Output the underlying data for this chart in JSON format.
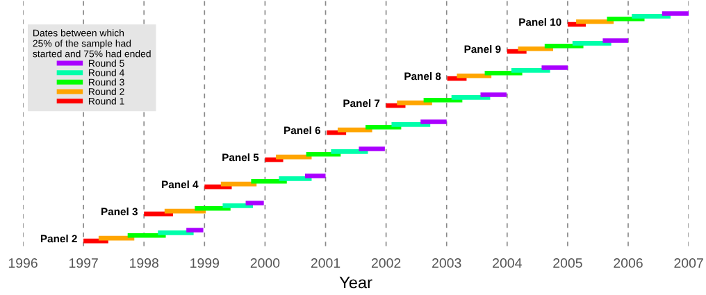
{
  "chart_data": {
    "type": "bar",
    "orientation": "horizontal",
    "xlabel": "Year",
    "legend_title": "Dates between which\n25% of the sample had\nstarted and 75% had ended",
    "categories": [
      "Panel 10",
      "Panel 9",
      "Panel 8",
      "Panel 7",
      "Panel 6",
      "Panel 5",
      "Panel 4",
      "Panel 3",
      "Panel 2"
    ],
    "series": [
      {
        "name": "Round 1",
        "color": "#ff0000",
        "base": [
          2005.0,
          2004.0,
          2003.01,
          2002.0,
          2001.02,
          2000.0,
          1999.0,
          1998.0,
          1997.0
        ],
        "values": [
          0.3,
          0.32,
          0.32,
          0.32,
          0.32,
          0.3,
          0.45,
          0.48,
          0.41
        ]
      },
      {
        "name": "Round 2",
        "color": "#ffa500",
        "base": [
          2005.14,
          2004.18,
          2003.17,
          2002.18,
          2001.2,
          2000.18,
          1999.27,
          1998.34,
          1997.25
        ],
        "values": [
          0.62,
          0.58,
          0.57,
          0.58,
          0.57,
          0.59,
          0.59,
          0.68,
          0.59
        ]
      },
      {
        "name": "Round 3",
        "color": "#00ff00",
        "base": [
          2005.65,
          2004.62,
          2003.63,
          2002.62,
          2001.66,
          2000.68,
          1999.77,
          1998.84,
          1997.73
        ],
        "values": [
          0.62,
          0.64,
          0.62,
          0.64,
          0.59,
          0.57,
          0.59,
          0.59,
          0.63
        ]
      },
      {
        "name": "Round 4",
        "color": "#00ffaa",
        "base": [
          2006.06,
          2005.08,
          2004.07,
          2003.08,
          2002.09,
          2001.09,
          2000.23,
          1999.3,
          1998.23
        ],
        "values": [
          0.64,
          0.64,
          0.64,
          0.64,
          0.64,
          0.61,
          0.54,
          0.5,
          0.59
        ]
      },
      {
        "name": "Round 5",
        "color": "#aa00ff",
        "base": [
          2006.56,
          2005.58,
          2004.57,
          2003.56,
          2002.57,
          2001.55,
          2000.66,
          1999.68,
          1998.7
        ],
        "values": [
          0.44,
          0.42,
          0.43,
          0.43,
          0.43,
          0.43,
          0.34,
          0.3,
          0.28
        ]
      }
    ],
    "xlim": [
      1996,
      2007
    ],
    "xticks": [
      1996,
      1997,
      1998,
      1999,
      2000,
      2001,
      2002,
      2003,
      2004,
      2005,
      2006,
      2007
    ],
    "grid": "x",
    "line_style": "dashed",
    "legend": "top left",
    "tick_labels": "x"
  }
}
